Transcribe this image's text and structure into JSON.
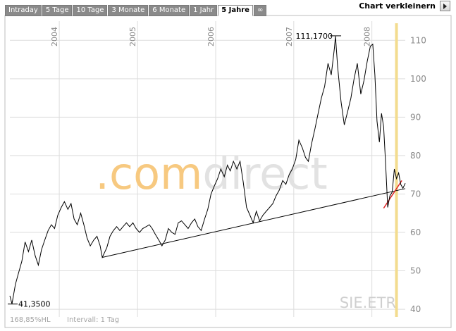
{
  "tabs": [
    {
      "label": "Intraday",
      "active": false
    },
    {
      "label": "5 Tage",
      "active": false
    },
    {
      "label": "10 Tage",
      "active": false
    },
    {
      "label": "3 Monate",
      "active": false
    },
    {
      "label": "6 Monate",
      "active": false
    },
    {
      "label": "1 Jahr",
      "active": false
    },
    {
      "label": "5 Jahre",
      "active": true
    },
    {
      "label": "∞",
      "active": false
    }
  ],
  "shrink_label": "Chart verkleinern",
  "watermark": ".comdirect",
  "symbol": "SIE.ETR",
  "footer": {
    "change": "168,85%HL",
    "interval": "Intervall: 1 Tag"
  },
  "chart_data": {
    "type": "line",
    "x_axis": {
      "type": "date",
      "range": [
        "2003-05-15",
        "2008-06-05"
      ],
      "tick_labels": [
        "2004",
        "2005",
        "2006",
        "2007",
        "2008"
      ],
      "label_position": "top",
      "grid": true
    },
    "y_axis": {
      "range": [
        38,
        115
      ],
      "ticks": [
        40,
        50,
        60,
        70,
        80,
        90,
        100,
        110
      ],
      "position": "right",
      "grid": true
    },
    "annotations": [
      {
        "text": "111,1700",
        "x": "2007-07-15",
        "y": 111.17
      },
      {
        "text": "41,3500",
        "x": "2003-05-25",
        "y": 41.35
      }
    ],
    "trendlines": [
      {
        "color": "#000000",
        "from": {
          "x": "2004-07-20",
          "y": 53.5
        },
        "to": {
          "x": "2008-06-05",
          "y": 71.4
        }
      },
      {
        "color": "#dd2222",
        "from": {
          "x": "2008-02-25",
          "y": 66.3
        },
        "to": {
          "x": "2008-05-20",
          "y": 73.5
        }
      }
    ],
    "highlight_x": "2008-04-25",
    "colors": {
      "line": "#000000",
      "trend": "#000000",
      "trend_short": "#dd2222",
      "grid": "#dddddd",
      "highlight": "#f3dc8f",
      "watermark_orange": "#f7c980",
      "watermark_gray": "#e2e2e2",
      "tab_bg": "#8a8a8a"
    },
    "series": [
      {
        "values": [
          [
            "2003-05-15",
            43.5
          ],
          [
            "2003-05-25",
            41.4
          ],
          [
            "2003-06-10",
            46.5
          ],
          [
            "2003-06-25",
            49.5
          ],
          [
            "2003-07-10",
            52.5
          ],
          [
            "2003-07-25",
            57.5
          ],
          [
            "2003-08-10",
            55.0
          ],
          [
            "2003-08-25",
            58.0
          ],
          [
            "2003-09-10",
            54.0
          ],
          [
            "2003-09-25",
            51.5
          ],
          [
            "2003-10-10",
            55.5
          ],
          [
            "2003-10-25",
            58.0
          ],
          [
            "2003-11-10",
            60.5
          ],
          [
            "2003-11-25",
            62.0
          ],
          [
            "2003-12-10",
            61.0
          ],
          [
            "2003-12-25",
            64.5
          ],
          [
            "2004-01-10",
            66.5
          ],
          [
            "2004-01-25",
            68.0
          ],
          [
            "2004-02-10",
            66.0
          ],
          [
            "2004-02-25",
            67.5
          ],
          [
            "2004-03-10",
            63.5
          ],
          [
            "2004-03-25",
            62.0
          ],
          [
            "2004-04-10",
            65.0
          ],
          [
            "2004-04-25",
            62.0
          ],
          [
            "2004-05-10",
            58.5
          ],
          [
            "2004-05-25",
            56.5
          ],
          [
            "2004-06-10",
            58.0
          ],
          [
            "2004-06-25",
            59.0
          ],
          [
            "2004-07-10",
            56.5
          ],
          [
            "2004-07-20",
            53.5
          ],
          [
            "2004-08-10",
            56.0
          ],
          [
            "2004-08-25",
            59.0
          ],
          [
            "2004-09-10",
            60.5
          ],
          [
            "2004-09-25",
            61.5
          ],
          [
            "2004-10-10",
            60.5
          ],
          [
            "2004-10-25",
            61.5
          ],
          [
            "2004-11-10",
            62.5
          ],
          [
            "2004-11-25",
            61.5
          ],
          [
            "2004-12-10",
            62.5
          ],
          [
            "2004-12-25",
            61.0
          ],
          [
            "2005-01-10",
            60.0
          ],
          [
            "2005-01-25",
            61.0
          ],
          [
            "2005-02-10",
            61.5
          ],
          [
            "2005-02-25",
            62.0
          ],
          [
            "2005-03-10",
            61.0
          ],
          [
            "2005-03-25",
            59.5
          ],
          [
            "2005-04-10",
            58.0
          ],
          [
            "2005-04-25",
            56.5
          ],
          [
            "2005-05-10",
            58.0
          ],
          [
            "2005-05-25",
            61.0
          ],
          [
            "2005-06-10",
            60.0
          ],
          [
            "2005-06-25",
            59.5
          ],
          [
            "2005-07-10",
            62.5
          ],
          [
            "2005-07-25",
            63.0
          ],
          [
            "2005-08-10",
            62.0
          ],
          [
            "2005-08-25",
            61.0
          ],
          [
            "2005-09-10",
            62.5
          ],
          [
            "2005-09-25",
            63.5
          ],
          [
            "2005-10-10",
            61.5
          ],
          [
            "2005-10-25",
            60.5
          ],
          [
            "2005-11-10",
            63.5
          ],
          [
            "2005-11-25",
            66.0
          ],
          [
            "2005-12-10",
            70.0
          ],
          [
            "2005-12-25",
            72.0
          ],
          [
            "2006-01-10",
            74.0
          ],
          [
            "2006-01-25",
            76.5
          ],
          [
            "2006-02-10",
            74.5
          ],
          [
            "2006-02-25",
            77.5
          ],
          [
            "2006-03-10",
            76.0
          ],
          [
            "2006-03-25",
            78.5
          ],
          [
            "2006-04-10",
            76.5
          ],
          [
            "2006-04-25",
            78.5
          ],
          [
            "2006-05-10",
            73.0
          ],
          [
            "2006-05-25",
            66.5
          ],
          [
            "2006-06-10",
            64.5
          ],
          [
            "2006-06-25",
            62.5
          ],
          [
            "2006-07-10",
            65.5
          ],
          [
            "2006-07-25",
            63.0
          ],
          [
            "2006-08-10",
            64.5
          ],
          [
            "2006-08-25",
            65.5
          ],
          [
            "2006-09-10",
            66.5
          ],
          [
            "2006-09-25",
            67.5
          ],
          [
            "2006-10-10",
            69.5
          ],
          [
            "2006-10-25",
            71.0
          ],
          [
            "2006-11-10",
            73.5
          ],
          [
            "2006-11-25",
            72.5
          ],
          [
            "2006-12-10",
            75.0
          ],
          [
            "2006-12-25",
            76.5
          ],
          [
            "2007-01-10",
            79.0
          ],
          [
            "2007-01-25",
            84.0
          ],
          [
            "2007-02-10",
            82.0
          ],
          [
            "2007-02-25",
            79.5
          ],
          [
            "2007-03-10",
            78.5
          ],
          [
            "2007-03-25",
            83.0
          ],
          [
            "2007-04-10",
            87.0
          ],
          [
            "2007-04-25",
            91.0
          ],
          [
            "2007-05-10",
            95.0
          ],
          [
            "2007-05-25",
            98.0
          ],
          [
            "2007-06-10",
            104.0
          ],
          [
            "2007-06-25",
            101.0
          ],
          [
            "2007-07-10",
            108.0
          ],
          [
            "2007-07-15",
            111.1
          ],
          [
            "2007-07-25",
            103.0
          ],
          [
            "2007-08-10",
            94.0
          ],
          [
            "2007-08-25",
            88.0
          ],
          [
            "2007-09-10",
            91.5
          ],
          [
            "2007-09-25",
            95.0
          ],
          [
            "2007-10-10",
            100.0
          ],
          [
            "2007-10-25",
            104.0
          ],
          [
            "2007-11-10",
            96.0
          ],
          [
            "2007-11-25",
            99.5
          ],
          [
            "2007-12-10",
            104.5
          ],
          [
            "2007-12-25",
            108.5
          ],
          [
            "2008-01-05",
            109.0
          ],
          [
            "2008-01-15",
            101.0
          ],
          [
            "2008-01-25",
            89.0
          ],
          [
            "2008-02-05",
            83.5
          ],
          [
            "2008-02-15",
            91.0
          ],
          [
            "2008-02-25",
            87.5
          ],
          [
            "2008-03-05",
            78.0
          ],
          [
            "2008-03-15",
            66.5
          ],
          [
            "2008-03-25",
            69.5
          ],
          [
            "2008-04-05",
            70.5
          ],
          [
            "2008-04-15",
            76.5
          ],
          [
            "2008-04-25",
            74.0
          ],
          [
            "2008-05-05",
            75.5
          ],
          [
            "2008-05-15",
            72.5
          ],
          [
            "2008-05-25",
            71.5
          ],
          [
            "2008-06-05",
            72.8
          ]
        ]
      }
    ]
  }
}
